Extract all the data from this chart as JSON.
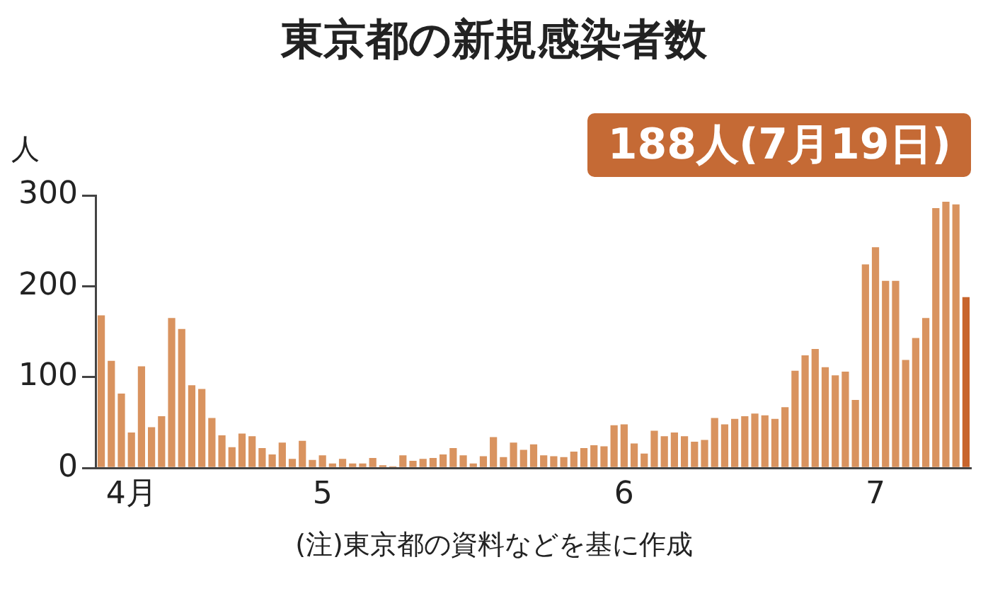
{
  "chart_data": {
    "type": "bar",
    "title": "東京都の新規感染者数",
    "ylabel": "人",
    "annotations": [
      "188人(7月19日)",
      "(注)東京都の資料などを基に作成"
    ],
    "categories": [
      null,
      null,
      null,
      "4月",
      null,
      null,
      null,
      null,
      null,
      null,
      null,
      null,
      null,
      null,
      null,
      null,
      null,
      null,
      null,
      null,
      null,
      null,
      "5",
      null,
      null,
      null,
      null,
      null,
      null,
      null,
      null,
      null,
      null,
      null,
      null,
      null,
      null,
      null,
      null,
      null,
      null,
      null,
      null,
      null,
      null,
      null,
      null,
      null,
      null,
      null,
      null,
      null,
      "6",
      null,
      null,
      null,
      null,
      null,
      null,
      null,
      null,
      null,
      null,
      null,
      null,
      null,
      null,
      null,
      null,
      null,
      null,
      null,
      null,
      null,
      null,
      null,
      null,
      "7",
      null,
      null,
      null,
      null,
      null,
      null,
      null,
      null,
      null
    ],
    "values": [
      168,
      118,
      82,
      39,
      112,
      45,
      57,
      165,
      153,
      91,
      87,
      55,
      36,
      23,
      38,
      35,
      22,
      15,
      28,
      10,
      30,
      9,
      14,
      5,
      10,
      5,
      5,
      11,
      3,
      2,
      14,
      8,
      10,
      11,
      15,
      22,
      14,
      5,
      13,
      34,
      12,
      28,
      20,
      26,
      14,
      13,
      12,
      18,
      22,
      25,
      24,
      47,
      48,
      27,
      16,
      41,
      35,
      39,
      35,
      29,
      31,
      55,
      48,
      54,
      57,
      60,
      58,
      54,
      67,
      107,
      124,
      131,
      111,
      102,
      106,
      75,
      224,
      243,
      206,
      206,
      119,
      143,
      165,
      286,
      293,
      290,
      188
    ],
    "colors": [
      "#d9935f",
      "#d9935f",
      "#d9935f",
      "#d9935f",
      "#d9935f",
      "#d9935f",
      "#d9935f",
      "#d9935f",
      "#d9935f",
      "#d9935f",
      "#d9935f",
      "#d9935f",
      "#d9935f",
      "#d9935f",
      "#d9935f",
      "#d9935f",
      "#d9935f",
      "#d9935f",
      "#d9935f",
      "#d9935f",
      "#d9935f",
      "#d9935f",
      "#d9935f",
      "#d9935f",
      "#d9935f",
      "#d9935f",
      "#d9935f",
      "#d9935f",
      "#d9935f",
      "#d9935f",
      "#d9935f",
      "#d9935f",
      "#d9935f",
      "#d9935f",
      "#d9935f",
      "#d9935f",
      "#d9935f",
      "#d9935f",
      "#d9935f",
      "#d9935f",
      "#d9935f",
      "#d9935f",
      "#d9935f",
      "#d9935f",
      "#d9935f",
      "#d9935f",
      "#d9935f",
      "#d9935f",
      "#d9935f",
      "#d9935f",
      "#d9935f",
      "#d9935f",
      "#d9935f",
      "#d9935f",
      "#d9935f",
      "#d9935f",
      "#d9935f",
      "#d9935f",
      "#d9935f",
      "#d9935f",
      "#d9935f",
      "#d9935f",
      "#d9935f",
      "#d9935f",
      "#d9935f",
      "#d9935f",
      "#d9935f",
      "#d9935f",
      "#d9935f",
      "#d9935f",
      "#d9935f",
      "#d9935f",
      "#d9935f",
      "#d9935f",
      "#d9935f",
      "#d9935f",
      "#d9935f",
      "#d9935f",
      "#d9935f",
      "#d9935f",
      "#d9935f",
      "#d9935f",
      "#d9935f",
      "#d9935f",
      "#d9935f",
      "#d9935f",
      "#c8652d"
    ],
    "ylim": [
      0,
      300
    ],
    "yticks": [
      0,
      100,
      200,
      300
    ],
    "grid": false,
    "legend": false
  }
}
